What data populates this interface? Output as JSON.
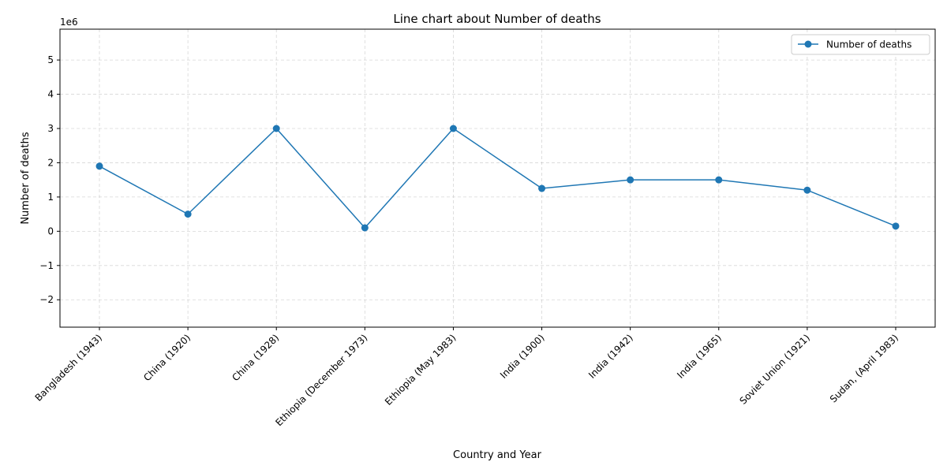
{
  "chart_data": {
    "type": "line",
    "title": "Line chart about Number of deaths",
    "xlabel": "Country and Year",
    "ylabel": "Number of deaths",
    "y_multiplier": "1e6",
    "categories": [
      "Bangladesh (1943)",
      "China (1920)",
      "China (1928)",
      "Ethiopia (December 1973)",
      "Ethiopia (May 1983)",
      "India (1900)",
      "India (1942)",
      "India (1965)",
      "Soviet Union (1921)",
      "Sudan, (April 1983)"
    ],
    "series": [
      {
        "name": "Number of deaths",
        "color": "#1f77b4",
        "values": [
          1900000,
          500000,
          3000000,
          100000,
          3000000,
          1250000,
          1500000,
          1500000,
          1200000,
          150000
        ]
      }
    ],
    "ylim": [
      -2800000,
      5900000
    ],
    "yticks": [
      -2,
      -1,
      0,
      1,
      2,
      3,
      4,
      5
    ],
    "grid": true,
    "legend_position": "top-right"
  }
}
